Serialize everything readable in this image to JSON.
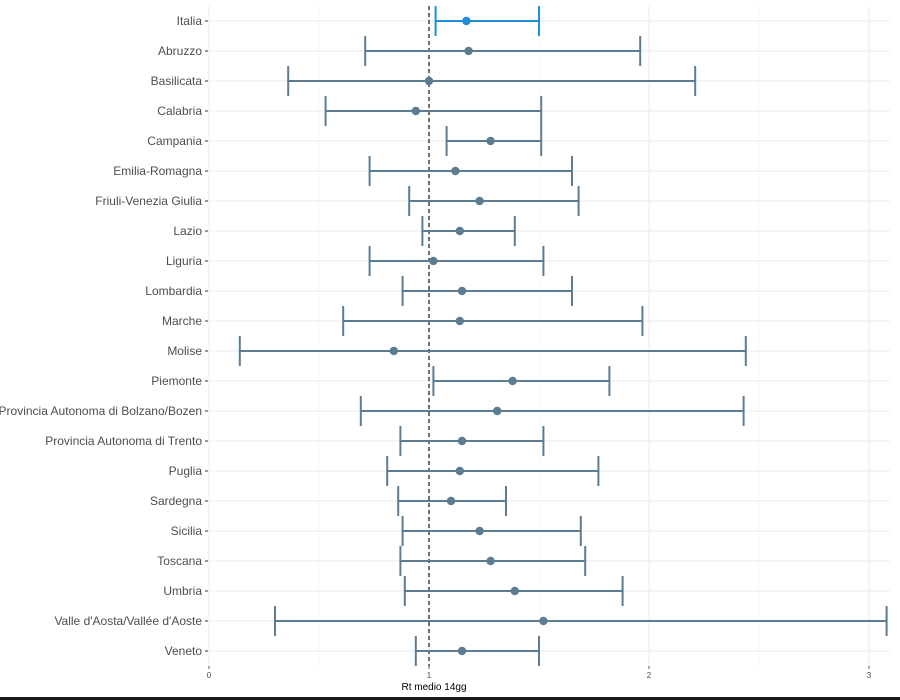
{
  "chart_data": {
    "type": "errorbar",
    "title": "",
    "xlabel": "Rt medio 14gg",
    "ylabel": "",
    "xlim": [
      0,
      3.1
    ],
    "xticks": [
      "0",
      "1",
      "2",
      "3"
    ],
    "xtick_values": [
      0,
      1,
      2,
      3
    ],
    "reference_line": 1,
    "grid": true,
    "highlight_color": "#1f8ed6",
    "default_color": "#5b7c91",
    "rows": [
      {
        "label": "Italia",
        "value": 1.17,
        "lower": 1.03,
        "upper": 1.5,
        "highlight": true
      },
      {
        "label": "Abruzzo",
        "value": 1.18,
        "lower": 0.71,
        "upper": 1.96
      },
      {
        "label": "Basilicata",
        "value": 1.0,
        "lower": 0.36,
        "upper": 2.21
      },
      {
        "label": "Calabria",
        "value": 0.94,
        "lower": 0.53,
        "upper": 1.51
      },
      {
        "label": "Campania",
        "value": 1.28,
        "lower": 1.08,
        "upper": 1.51
      },
      {
        "label": "Emilia-Romagna",
        "value": 1.12,
        "lower": 0.73,
        "upper": 1.65
      },
      {
        "label": "Friuli-Venezia Giulia",
        "value": 1.23,
        "lower": 0.91,
        "upper": 1.68
      },
      {
        "label": "Lazio",
        "value": 1.14,
        "lower": 0.97,
        "upper": 1.39
      },
      {
        "label": "Liguria",
        "value": 1.02,
        "lower": 0.73,
        "upper": 1.52
      },
      {
        "label": "Lombardia",
        "value": 1.15,
        "lower": 0.88,
        "upper": 1.65
      },
      {
        "label": "Marche",
        "value": 1.14,
        "lower": 0.61,
        "upper": 1.97
      },
      {
        "label": "Molise",
        "value": 0.84,
        "lower": 0.14,
        "upper": 2.44
      },
      {
        "label": "Piemonte",
        "value": 1.38,
        "lower": 1.02,
        "upper": 1.82
      },
      {
        "label": "Provincia Autonoma di Bolzano/Bozen",
        "value": 1.31,
        "lower": 0.69,
        "upper": 2.43
      },
      {
        "label": "Provincia Autonoma di Trento",
        "value": 1.15,
        "lower": 0.87,
        "upper": 1.52
      },
      {
        "label": "Puglia",
        "value": 1.14,
        "lower": 0.81,
        "upper": 1.77
      },
      {
        "label": "Sardegna",
        "value": 1.1,
        "lower": 0.86,
        "upper": 1.35
      },
      {
        "label": "Sicilia",
        "value": 1.23,
        "lower": 0.88,
        "upper": 1.69
      },
      {
        "label": "Toscana",
        "value": 1.28,
        "lower": 0.87,
        "upper": 1.71
      },
      {
        "label": "Umbria",
        "value": 1.39,
        "lower": 0.89,
        "upper": 1.88
      },
      {
        "label": "Valle d'Aosta/Vallée d'Aoste",
        "value": 1.52,
        "lower": 0.3,
        "upper": 3.08
      },
      {
        "label": "Veneto",
        "value": 1.15,
        "lower": 0.94,
        "upper": 1.5
      }
    ]
  }
}
